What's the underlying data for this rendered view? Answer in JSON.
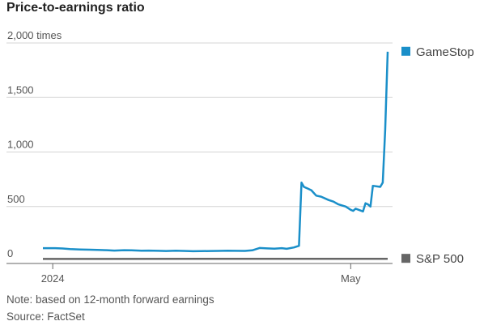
{
  "chart_data": {
    "type": "line",
    "title": "Price-to-earnings ratio",
    "y_ticks": [
      "2,000 times",
      "1,500",
      "1,000",
      "500",
      "0"
    ],
    "y_tick_values": [
      2000,
      1500,
      1000,
      500,
      0
    ],
    "x_ticks": [
      {
        "label": "2024",
        "date": "2024-01-01"
      },
      {
        "label": "May",
        "date": "2024-05-01"
      }
    ],
    "ylim": [
      0,
      2000
    ],
    "xlim": [
      "2023-12-28",
      "2024-05-17"
    ],
    "grid": "horizontal",
    "legend_placement": "right",
    "series": [
      {
        "name": "GameStop",
        "color": "#1a8fc9",
        "points": [
          [
            "2023-12-28",
            118
          ],
          [
            "2024-01-02",
            118
          ],
          [
            "2024-01-05",
            115
          ],
          [
            "2024-01-08",
            110
          ],
          [
            "2024-01-12",
            106
          ],
          [
            "2024-01-16",
            104
          ],
          [
            "2024-01-19",
            102
          ],
          [
            "2024-01-23",
            100
          ],
          [
            "2024-01-26",
            96
          ],
          [
            "2024-01-30",
            100
          ],
          [
            "2024-02-02",
            98
          ],
          [
            "2024-02-06",
            95
          ],
          [
            "2024-02-09",
            96
          ],
          [
            "2024-02-13",
            94
          ],
          [
            "2024-02-16",
            92
          ],
          [
            "2024-02-20",
            95
          ],
          [
            "2024-02-23",
            93
          ],
          [
            "2024-02-27",
            90
          ],
          [
            "2024-03-01",
            91
          ],
          [
            "2024-03-05",
            92
          ],
          [
            "2024-03-08",
            93
          ],
          [
            "2024-03-12",
            95
          ],
          [
            "2024-03-15",
            94
          ],
          [
            "2024-03-19",
            93
          ],
          [
            "2024-03-22",
            98
          ],
          [
            "2024-03-25",
            120
          ],
          [
            "2024-03-28",
            116
          ],
          [
            "2024-03-31",
            113
          ],
          [
            "2024-04-03",
            118
          ],
          [
            "2024-04-05",
            112
          ],
          [
            "2024-04-08",
            125
          ],
          [
            "2024-04-10",
            140
          ],
          [
            "2024-04-11",
            720
          ],
          [
            "2024-04-12",
            680
          ],
          [
            "2024-04-15",
            650
          ],
          [
            "2024-04-17",
            600
          ],
          [
            "2024-04-19",
            590
          ],
          [
            "2024-04-22",
            560
          ],
          [
            "2024-04-24",
            545
          ],
          [
            "2024-04-26",
            520
          ],
          [
            "2024-04-29",
            500
          ],
          [
            "2024-05-01",
            470
          ],
          [
            "2024-05-02",
            460
          ],
          [
            "2024-05-03",
            480
          ],
          [
            "2024-05-06",
            455
          ],
          [
            "2024-05-07",
            530
          ],
          [
            "2024-05-08",
            520
          ],
          [
            "2024-05-09",
            500
          ],
          [
            "2024-05-10",
            690
          ],
          [
            "2024-05-13",
            680
          ],
          [
            "2024-05-14",
            720
          ],
          [
            "2024-05-15",
            1200
          ],
          [
            "2024-05-16",
            1920
          ]
        ]
      },
      {
        "name": "S&P 500",
        "color": "#666666",
        "points": [
          [
            "2023-12-28",
            19
          ],
          [
            "2024-05-16",
            21
          ]
        ]
      }
    ],
    "note": "Note: based on 12-month forward earnings",
    "source": "Source: FactSet"
  }
}
